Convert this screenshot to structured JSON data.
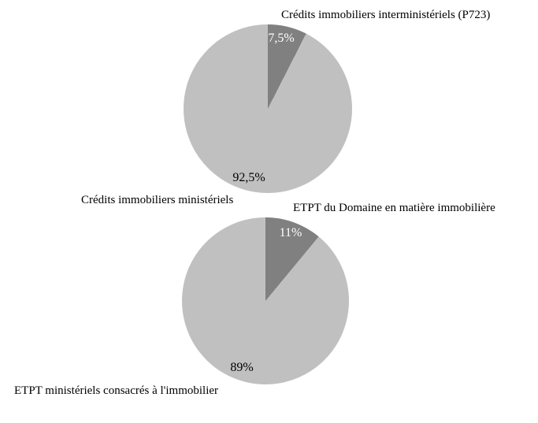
{
  "figure": {
    "background_color": "#ffffff",
    "chart_count": 2
  },
  "colors": {
    "dark_slice": "#808080",
    "light_slice": "#c0c0c0",
    "text": "#000000",
    "pct_on_dark": "#ffffff"
  },
  "chart_data": [
    {
      "type": "pie",
      "title": "",
      "start_angle_deg": 0,
      "direction": "clockwise",
      "legend_position": "none",
      "slices": [
        {
          "name": "Crédits immobiliers interministériels (P723)",
          "value": 7.5,
          "pct_label": "7,5%",
          "color": "#808080",
          "pct_label_color": "#ffffff",
          "name_position": "top-right"
        },
        {
          "name": "Crédits immobiliers ministériels",
          "value": 92.5,
          "pct_label": "92,5%",
          "color": "#c0c0c0",
          "pct_label_color": "#000000",
          "name_position": "bottom-left"
        }
      ]
    },
    {
      "type": "pie",
      "title": "",
      "start_angle_deg": 0,
      "direction": "clockwise",
      "legend_position": "none",
      "slices": [
        {
          "name": "ETPT du Domaine en matière immobilière",
          "value": 11,
          "pct_label": "11%",
          "color": "#808080",
          "pct_label_color": "#ffffff",
          "name_position": "top-right"
        },
        {
          "name": "ETPT ministériels consacrés à l'immobilier",
          "value": 89,
          "pct_label": "89%",
          "color": "#c0c0c0",
          "pct_label_color": "#000000",
          "name_position": "bottom-left"
        }
      ]
    }
  ]
}
